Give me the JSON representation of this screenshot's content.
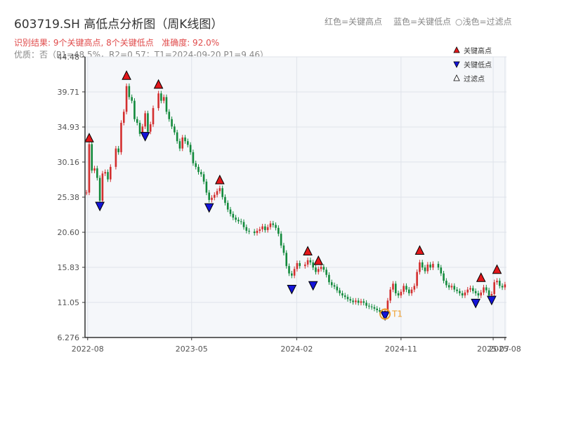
{
  "header": {
    "title": "603719.SH 高低点分析图（周K线图）",
    "result": "识别结果: 9个关键高点, 8个关键低点   准确度: 92.0%",
    "quality": "优质：否（P1=48.5%，R2=0.57；T1=2024-09-20 P1=9.46）",
    "legend_red": "红色=关键高点",
    "legend_blue": "蓝色=关键低点",
    "legend_light": "○浅色=过滤点"
  },
  "legend": [
    {
      "label": "关键高点",
      "marker": "up-triangle",
      "color": "#e3171b"
    },
    {
      "label": "关键低点",
      "marker": "down-triangle",
      "color": "#1414d8"
    },
    {
      "label": "过滤点",
      "marker": "up-triangle",
      "color": "#ffffff"
    }
  ],
  "colors": {
    "up": "#d32f2f",
    "down": "#138a3c",
    "high": "#e3171b",
    "low": "#1414d8",
    "t1": "#f0a030"
  },
  "chart_data": {
    "type": "candlestick",
    "ylim": [
      6.276,
      44.48
    ],
    "yticks": [
      "6.276",
      "11.05",
      "15.83",
      "20.60",
      "25.38",
      "30.16",
      "34.93",
      "39.71",
      "44.48"
    ],
    "xlim": [
      "2022-07-25",
      "2025-08-05"
    ],
    "xticks": [
      "2022-08",
      "2023-05",
      "2024-02",
      "2024-11",
      "2025-07",
      "2025-08"
    ],
    "close_series": [
      [
        "2022-07-29",
        26.0
      ],
      [
        "2022-08-05",
        32.6
      ],
      [
        "2022-08-12",
        29.0
      ],
      [
        "2022-08-19",
        29.3
      ],
      [
        "2022-08-26",
        28.0
      ],
      [
        "2022-09-02",
        24.9
      ],
      [
        "2022-09-09",
        28.6
      ],
      [
        "2022-09-16",
        28.8
      ],
      [
        "2022-09-23",
        27.8
      ],
      [
        "2022-09-30",
        29.5
      ],
      [
        "2022-10-14",
        32.0
      ],
      [
        "2022-10-21",
        31.5
      ],
      [
        "2022-10-28",
        35.5
      ],
      [
        "2022-11-04",
        37.0
      ],
      [
        "2022-11-11",
        40.5
      ],
      [
        "2022-11-18",
        39.0
      ],
      [
        "2022-11-25",
        38.5
      ],
      [
        "2022-12-02",
        36.0
      ],
      [
        "2022-12-09",
        35.5
      ],
      [
        "2022-12-16",
        34.0
      ],
      [
        "2022-12-23",
        35.0
      ],
      [
        "2022-12-30",
        36.8
      ],
      [
        "2023-01-06",
        34.3
      ],
      [
        "2023-01-13",
        35.3
      ],
      [
        "2023-01-20",
        37.5
      ],
      [
        "2023-02-03",
        39.5
      ],
      [
        "2023-02-10",
        38.5
      ],
      [
        "2023-02-17",
        39.0
      ],
      [
        "2023-02-24",
        37.0
      ],
      [
        "2023-03-03",
        36.0
      ],
      [
        "2023-03-10",
        35.0
      ],
      [
        "2023-03-17",
        34.2
      ],
      [
        "2023-03-24",
        33.0
      ],
      [
        "2023-03-31",
        32.0
      ],
      [
        "2023-04-07",
        33.5
      ],
      [
        "2023-04-14",
        33.0
      ],
      [
        "2023-04-21",
        32.5
      ],
      [
        "2023-04-28",
        31.5
      ],
      [
        "2023-05-05",
        30.0
      ],
      [
        "2023-05-12",
        29.5
      ],
      [
        "2023-05-19",
        28.8
      ],
      [
        "2023-05-26",
        28.5
      ],
      [
        "2023-06-02",
        27.5
      ],
      [
        "2023-06-09",
        26.0
      ],
      [
        "2023-06-16",
        25.0
      ],
      [
        "2023-06-23",
        25.3
      ],
      [
        "2023-06-30",
        25.7
      ],
      [
        "2023-07-07",
        26.2
      ],
      [
        "2023-07-14",
        26.6
      ],
      [
        "2023-07-21",
        25.4
      ],
      [
        "2023-07-28",
        24.6
      ],
      [
        "2023-08-04",
        23.7
      ],
      [
        "2023-08-11",
        23.1
      ],
      [
        "2023-08-18",
        22.6
      ],
      [
        "2023-08-25",
        22.3
      ],
      [
        "2023-09-01",
        22.1
      ],
      [
        "2023-09-08",
        22.0
      ],
      [
        "2023-09-15",
        21.3
      ],
      [
        "2023-09-22",
        20.8
      ],
      [
        "2023-09-29",
        20.7
      ],
      [
        "2023-10-13",
        20.5
      ],
      [
        "2023-10-20",
        20.8
      ],
      [
        "2023-10-27",
        21.0
      ],
      [
        "2023-11-03",
        21.4
      ],
      [
        "2023-11-10",
        20.9
      ],
      [
        "2023-11-17",
        21.3
      ],
      [
        "2023-11-24",
        21.8
      ],
      [
        "2023-12-01",
        21.6
      ],
      [
        "2023-12-08",
        21.2
      ],
      [
        "2023-12-15",
        20.4
      ],
      [
        "2023-12-22",
        18.8
      ],
      [
        "2023-12-29",
        17.8
      ],
      [
        "2024-01-05",
        16.0
      ],
      [
        "2024-01-12",
        15.0
      ],
      [
        "2024-01-19",
        14.7
      ],
      [
        "2024-01-26",
        15.6
      ],
      [
        "2024-02-02",
        16.4
      ],
      [
        "2024-02-09",
        16.0
      ],
      [
        "2024-02-23",
        16.2
      ],
      [
        "2024-03-01",
        16.8
      ],
      [
        "2024-03-08",
        16.5
      ],
      [
        "2024-03-15",
        15.8
      ],
      [
        "2024-03-22",
        15.2
      ],
      [
        "2024-03-29",
        15.6
      ],
      [
        "2024-04-05",
        15.9
      ],
      [
        "2024-04-12",
        15.5
      ],
      [
        "2024-04-19",
        14.8
      ],
      [
        "2024-04-26",
        13.8
      ],
      [
        "2024-05-03",
        13.4
      ],
      [
        "2024-05-10",
        13.2
      ],
      [
        "2024-05-17",
        12.7
      ],
      [
        "2024-05-24",
        12.3
      ],
      [
        "2024-05-31",
        12.0
      ],
      [
        "2024-06-07",
        11.8
      ],
      [
        "2024-06-14",
        11.5
      ],
      [
        "2024-06-21",
        11.3
      ],
      [
        "2024-06-28",
        11.1
      ],
      [
        "2024-07-05",
        11.3
      ],
      [
        "2024-07-12",
        11.0
      ],
      [
        "2024-07-19",
        11.2
      ],
      [
        "2024-07-26",
        11.0
      ],
      [
        "2024-08-02",
        10.6
      ],
      [
        "2024-08-09",
        10.5
      ],
      [
        "2024-08-16",
        10.4
      ],
      [
        "2024-08-23",
        10.2
      ],
      [
        "2024-08-30",
        10.0
      ],
      [
        "2024-09-06",
        9.8
      ],
      [
        "2024-09-13",
        9.7
      ],
      [
        "2024-09-20",
        9.9
      ],
      [
        "2024-09-27",
        11.3
      ],
      [
        "2024-10-04",
        12.8
      ],
      [
        "2024-10-11",
        13.6
      ],
      [
        "2024-10-18",
        12.3
      ],
      [
        "2024-10-25",
        12.0
      ],
      [
        "2024-11-01",
        12.5
      ],
      [
        "2024-11-08",
        13.3
      ],
      [
        "2024-11-15",
        12.8
      ],
      [
        "2024-11-22",
        12.3
      ],
      [
        "2024-11-29",
        12.8
      ],
      [
        "2024-12-06",
        13.3
      ],
      [
        "2024-12-13",
        15.2
      ],
      [
        "2024-12-20",
        16.5
      ],
      [
        "2024-12-27",
        15.8
      ],
      [
        "2025-01-03",
        15.3
      ],
      [
        "2025-01-10",
        16.2
      ],
      [
        "2025-01-17",
        15.8
      ],
      [
        "2025-01-24",
        16.3
      ],
      [
        "2025-02-07",
        15.8
      ],
      [
        "2025-02-14",
        15.0
      ],
      [
        "2025-02-21",
        14.0
      ],
      [
        "2025-02-28",
        13.4
      ],
      [
        "2025-03-07",
        13.1
      ],
      [
        "2025-03-14",
        13.3
      ],
      [
        "2025-03-21",
        12.8
      ],
      [
        "2025-03-28",
        12.6
      ],
      [
        "2025-04-04",
        12.3
      ],
      [
        "2025-04-11",
        12.0
      ],
      [
        "2025-04-18",
        12.4
      ],
      [
        "2025-04-25",
        12.8
      ],
      [
        "2025-05-02",
        13.0
      ],
      [
        "2025-05-09",
        12.6
      ],
      [
        "2025-05-16",
        12.3
      ],
      [
        "2025-05-23",
        12.0
      ],
      [
        "2025-05-30",
        12.4
      ],
      [
        "2025-06-06",
        13.1
      ],
      [
        "2025-06-13",
        12.7
      ],
      [
        "2025-06-20",
        12.0
      ],
      [
        "2025-06-27",
        12.2
      ],
      [
        "2025-07-04",
        13.8
      ],
      [
        "2025-07-11",
        14.0
      ],
      [
        "2025-07-18",
        13.3
      ],
      [
        "2025-07-25",
        13.1
      ],
      [
        "2025-08-01",
        13.5
      ]
    ],
    "key_highs": [
      [
        "2022-08-05",
        32.8
      ],
      [
        "2022-11-11",
        41.3
      ],
      [
        "2023-02-03",
        40.1
      ],
      [
        "2023-07-14",
        27.1
      ],
      [
        "2024-03-01",
        17.4
      ],
      [
        "2024-03-29",
        16.1
      ],
      [
        "2024-12-20",
        17.5
      ],
      [
        "2025-05-30",
        13.8
      ],
      [
        "2025-07-11",
        14.9
      ]
    ],
    "key_lows": [
      [
        "2022-09-02",
        24.6
      ],
      [
        "2022-12-30",
        34.1
      ],
      [
        "2023-06-16",
        24.4
      ],
      [
        "2024-01-19",
        13.3
      ],
      [
        "2024-03-15",
        13.8
      ],
      [
        "2024-09-20",
        9.7
      ],
      [
        "2025-05-16",
        11.4
      ],
      [
        "2025-06-27",
        11.8
      ]
    ],
    "annotation": {
      "label": "T1",
      "date": "2024-09-20",
      "value": 9.46
    }
  }
}
